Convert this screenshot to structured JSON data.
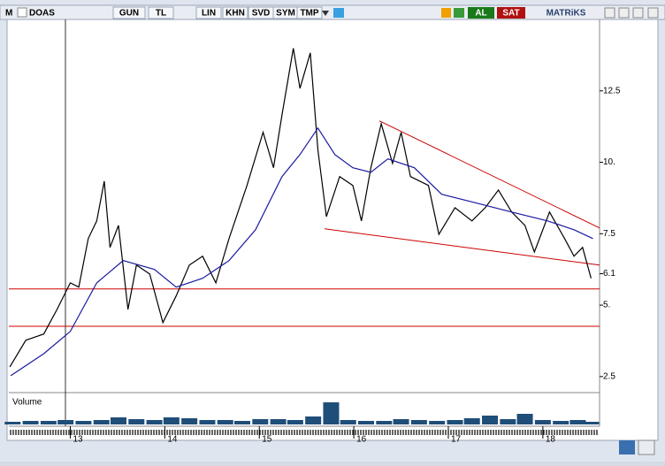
{
  "toolbar": {
    "logo": "M",
    "symbol": "DOAS",
    "buttons": [
      "GUN",
      "TL",
      "LIN",
      "KHN",
      "SVD",
      "SYM",
      "TMP"
    ],
    "buy": "AL",
    "sell": "SAT",
    "brand": "MATRiKS"
  },
  "chart_data": [
    {
      "type": "line",
      "xlim": [
        12.35,
        18.6
      ],
      "ylim": [
        2,
        15
      ],
      "xticks": [
        13,
        14,
        15,
        16,
        17,
        18
      ],
      "yticks": [
        2.5,
        {
          "value": 5,
          "label": "5."
        },
        6.1,
        7.5,
        {
          "value": 10,
          "label": "10."
        },
        12.5
      ],
      "series": [
        {
          "color": "#000000",
          "x": [
            12.36,
            12.53,
            12.72,
            12.86,
            13.0,
            13.09,
            13.19,
            13.28,
            13.36,
            13.42,
            13.51,
            13.61,
            13.7,
            13.84,
            13.98,
            14.12,
            14.26,
            14.4,
            14.54,
            14.68,
            14.87,
            15.04,
            15.15,
            15.24,
            15.36,
            15.43,
            15.54,
            15.62,
            15.71,
            15.85,
            15.99,
            16.08,
            16.18,
            16.29,
            16.41,
            16.5,
            16.6,
            16.79,
            16.9,
            17.07,
            17.25,
            17.39,
            17.53,
            17.67,
            17.81,
            17.91,
            18.07,
            18.23,
            18.33,
            18.42,
            18.51
          ],
          "values": [
            2.84,
            3.77,
            3.99,
            4.85,
            5.78,
            5.63,
            7.33,
            7.95,
            9.34,
            7.02,
            7.79,
            4.85,
            6.4,
            6.09,
            4.39,
            5.32,
            6.4,
            6.71,
            5.78,
            7.33,
            9.19,
            11.05,
            9.81,
            11.66,
            13.99,
            12.59,
            13.83,
            10.43,
            8.1,
            9.5,
            9.19,
            7.95,
            9.81,
            11.35,
            9.96,
            11.05,
            9.5,
            9.19,
            7.48,
            8.41,
            7.95,
            8.41,
            9.03,
            8.26,
            7.79,
            6.86,
            8.26,
            7.33,
            6.71,
            7.02,
            5.94
          ]
        },
        {
          "color": "#1a1aa0",
          "x": [
            12.37,
            12.72,
            13.0,
            13.28,
            13.56,
            13.89,
            14.12,
            14.4,
            14.68,
            14.96,
            15.24,
            15.43,
            15.62,
            15.8,
            15.99,
            16.18,
            16.36,
            16.64,
            16.93,
            17.3,
            17.67,
            18.05,
            18.33,
            18.53
          ],
          "values": [
            2.53,
            3.3,
            4.08,
            5.78,
            6.56,
            6.25,
            5.63,
            5.94,
            6.56,
            7.64,
            9.5,
            10.27,
            11.2,
            10.27,
            9.81,
            9.65,
            10.12,
            9.81,
            8.88,
            8.57,
            8.26,
            7.95,
            7.64,
            7.33
          ]
        }
      ],
      "lines": [
        {
          "color": "#cc0000",
          "x": [
            12.35,
            18.6
          ],
          "values": [
            5.57,
            5.57
          ]
        },
        {
          "color": "#cc0000",
          "x": [
            12.35,
            18.6
          ],
          "values": [
            4.26,
            4.26
          ]
        },
        {
          "color": "#cc0000",
          "x": [
            16.27,
            18.6
          ],
          "values": [
            11.45,
            7.7
          ]
        },
        {
          "color": "#cc0000",
          "x": [
            15.69,
            18.6
          ],
          "values": [
            7.67,
            6.4
          ]
        }
      ]
    },
    {
      "type": "bar",
      "title": "Volume",
      "color": "#1f4e79",
      "ylim": [
        0,
        30
      ],
      "x": [
        12.39,
        12.58,
        12.77,
        12.95,
        13.14,
        13.33,
        13.51,
        13.7,
        13.89,
        14.07,
        14.26,
        14.45,
        14.64,
        14.82,
        15.01,
        15.2,
        15.38,
        15.57,
        15.76,
        15.94,
        16.13,
        16.32,
        16.5,
        16.69,
        16.88,
        17.07,
        17.25,
        17.44,
        17.63,
        17.81,
        18.0,
        18.19,
        18.37,
        18.51
      ],
      "values": [
        3,
        4,
        4,
        5,
        4,
        5,
        8,
        6,
        5,
        8,
        7,
        5,
        5,
        4,
        6,
        6,
        5,
        9,
        25,
        5,
        4,
        4,
        6,
        5,
        4,
        5,
        7,
        10,
        6,
        12,
        5,
        4,
        5,
        3
      ]
    }
  ]
}
